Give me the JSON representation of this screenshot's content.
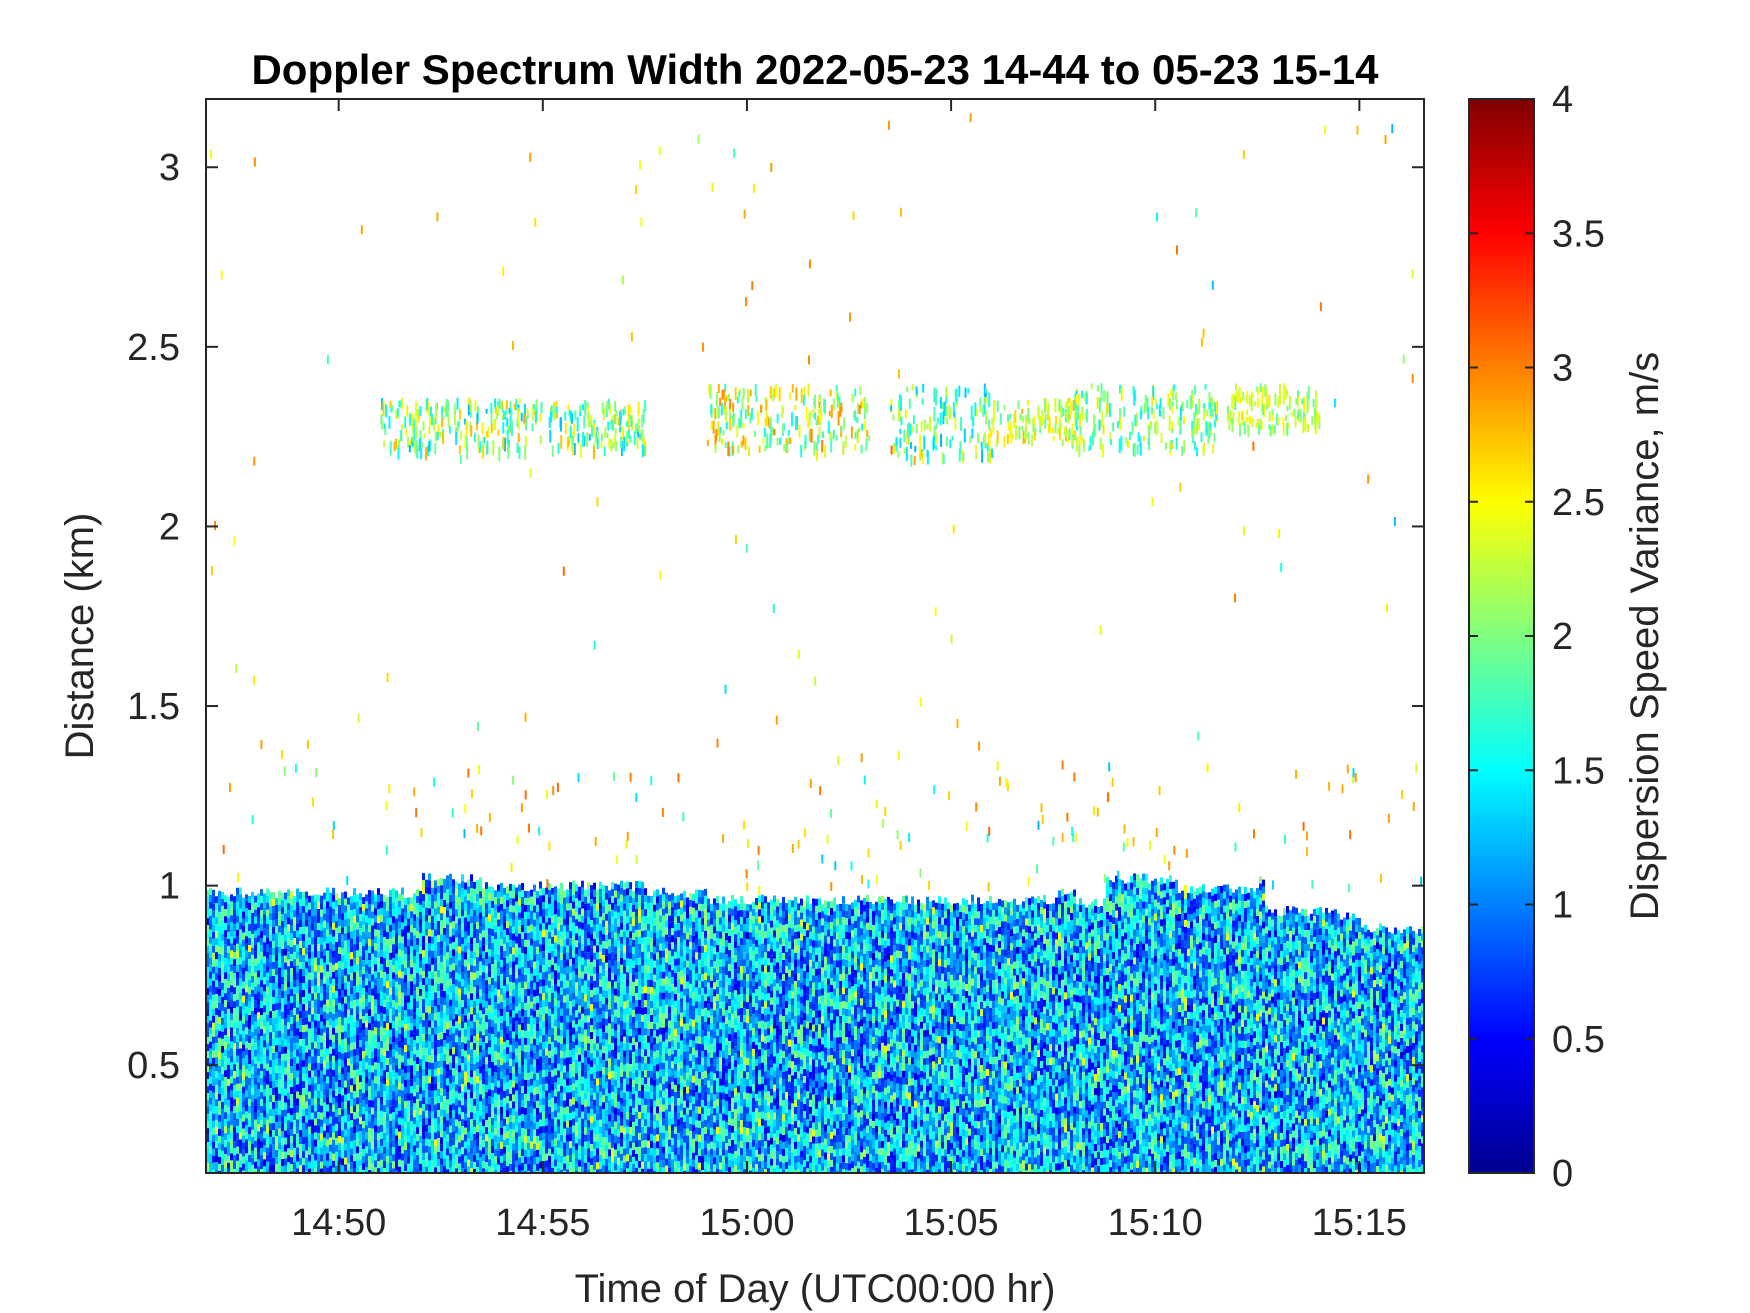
{
  "chart_data": {
    "type": "heatmap",
    "title": "Doppler Spectrum Width 2022-05-23 14-44 to 05-23 15-14",
    "xlabel": "Time of Day (UTC00:00 hr)",
    "ylabel": "Distance (km)",
    "colorbar_label": "Dispersion Speed Variance, m/s",
    "colormap": "jet",
    "x_range": [
      "14:46:45",
      "15:16:35"
    ],
    "y_range_km": [
      0.2,
      3.19
    ],
    "c_range": [
      0,
      4
    ],
    "x_ticks": [
      {
        "time": "14:50:00",
        "label": "14:50"
      },
      {
        "time": "14:55:00",
        "label": "14:55"
      },
      {
        "time": "15:00:00",
        "label": "15:00"
      },
      {
        "time": "15:05:00",
        "label": "15:05"
      },
      {
        "time": "15:10:00",
        "label": "15:10"
      },
      {
        "time": "15:15:00",
        "label": "15:15"
      }
    ],
    "y_ticks": [
      {
        "value": 0.5,
        "label": "0.5"
      },
      {
        "value": 1.0,
        "label": "1"
      },
      {
        "value": 1.5,
        "label": "1.5"
      },
      {
        "value": 2.0,
        "label": "2"
      },
      {
        "value": 2.5,
        "label": "2.5"
      },
      {
        "value": 3.0,
        "label": "3"
      }
    ],
    "c_ticks": [
      {
        "value": 0,
        "label": "0"
      },
      {
        "value": 0.5,
        "label": "0.5"
      },
      {
        "value": 1,
        "label": "1"
      },
      {
        "value": 1.5,
        "label": "1.5"
      },
      {
        "value": 2,
        "label": "2"
      },
      {
        "value": 2.5,
        "label": "2.5"
      },
      {
        "value": 3,
        "label": "3"
      },
      {
        "value": 3.5,
        "label": "3.5"
      },
      {
        "value": 4,
        "label": "4"
      }
    ],
    "dense_layer_top_km": [
      {
        "time": "14:46:45",
        "top_km": 0.98
      },
      {
        "time": "14:52:00",
        "top_km": 1.02
      },
      {
        "time": "14:53:30",
        "top_km": 1.0
      },
      {
        "time": "14:57:30",
        "top_km": 0.98
      },
      {
        "time": "14:59:00",
        "top_km": 0.96
      },
      {
        "time": "15:07:30",
        "top_km": 0.98
      },
      {
        "time": "15:08:00",
        "top_km": 0.95
      },
      {
        "time": "15:08:45",
        "top_km": 1.02
      },
      {
        "time": "15:10:30",
        "top_km": 0.99
      },
      {
        "time": "15:12:30",
        "top_km": 1.02
      },
      {
        "time": "15:12:40",
        "top_km": 0.93
      },
      {
        "time": "15:14:20",
        "top_km": 0.92
      },
      {
        "time": "15:15:00",
        "top_km": 0.88
      },
      {
        "time": "15:16:35",
        "top_km": 0.92
      }
    ],
    "dense_layer_value_range": [
      0.5,
      2.0
    ],
    "scattered_layers": [
      {
        "time_range": [
          "14:51:00",
          "14:57:30"
        ],
        "km_range": [
          2.22,
          2.36
        ],
        "value_range": [
          1.2,
          2.8
        ]
      },
      {
        "time_range": [
          "14:59:00",
          "15:03:00"
        ],
        "km_range": [
          2.22,
          2.4
        ],
        "value_range": [
          1.5,
          3.0
        ]
      },
      {
        "time_range": [
          "15:03:30",
          "15:06:00"
        ],
        "km_range": [
          2.2,
          2.4
        ],
        "value_range": [
          1.2,
          2.6
        ]
      },
      {
        "time_range": [
          "15:06:00",
          "15:08:00"
        ],
        "km_range": [
          2.24,
          2.36
        ],
        "value_range": [
          1.8,
          2.8
        ]
      },
      {
        "time_range": [
          "15:08:00",
          "15:11:30"
        ],
        "km_range": [
          2.22,
          2.4
        ],
        "value_range": [
          1.4,
          2.6
        ]
      },
      {
        "time_range": [
          "15:11:45",
          "15:14:00"
        ],
        "km_range": [
          2.28,
          2.4
        ],
        "value_range": [
          1.8,
          2.6
        ]
      }
    ]
  }
}
